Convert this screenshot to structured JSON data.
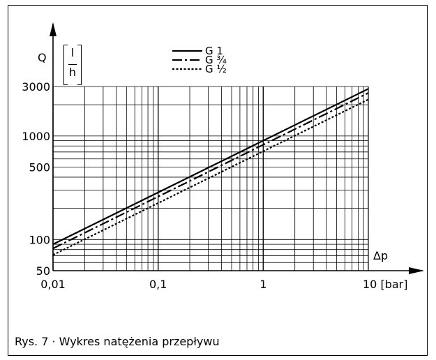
{
  "chart_data": {
    "type": "line",
    "title": "",
    "xlabel": "Δp",
    "xunit": "[bar]",
    "ylabel": "Q",
    "yunit": {
      "numerator": "l",
      "denominator": "h"
    },
    "xscale": "log",
    "yscale": "log",
    "xlim": [
      0.01,
      10
    ],
    "ylim": [
      50,
      3000
    ],
    "xticks": [
      {
        "value": 0.01,
        "label": "0,01"
      },
      {
        "value": 0.1,
        "label": "0,1"
      },
      {
        "value": 1,
        "label": "1"
      },
      {
        "value": 10,
        "label": "10 [bar]"
      }
    ],
    "yticks": [
      {
        "value": 50,
        "label": "50"
      },
      {
        "value": 100,
        "label": "100"
      },
      {
        "value": 500,
        "label": "500"
      },
      {
        "value": 1000,
        "label": "1000"
      },
      {
        "value": 3000,
        "label": "3000"
      }
    ],
    "grid": true,
    "legend_position": "top-center",
    "series": [
      {
        "name": "G 1",
        "style": "solid",
        "x": [
          0.01,
          10
        ],
        "y": [
          90,
          2850
        ]
      },
      {
        "name": "G ¾",
        "style": "dashdot",
        "x": [
          0.01,
          10
        ],
        "y": [
          82,
          2600
        ]
      },
      {
        "name": "G ½",
        "style": "dotted",
        "x": [
          0.01,
          10
        ],
        "y": [
          71,
          2250
        ]
      }
    ]
  },
  "caption": "Rys. 7 · Wykres natężenia przepływu"
}
